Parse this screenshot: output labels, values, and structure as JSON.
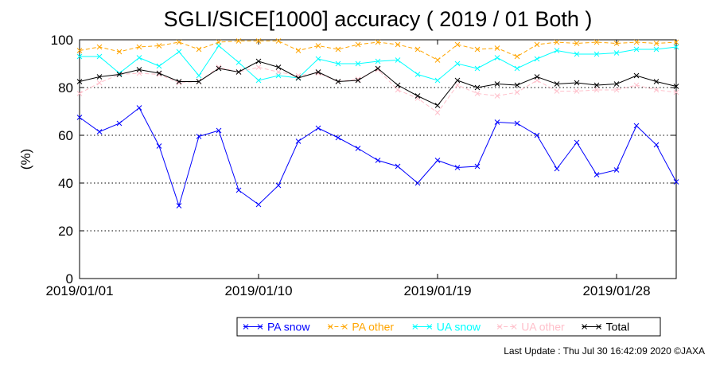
{
  "chart_data": {
    "type": "line",
    "title": "SGLI/SICE[1000] accuracy ( 2019 / 01 Both )",
    "ylabel": "(%)",
    "xlabel": "",
    "ylim": [
      0,
      100
    ],
    "yticks": [
      0,
      20,
      40,
      60,
      80,
      100
    ],
    "grid": "horizontal-dotted",
    "legend_position": "bottom",
    "x": [
      "2019/01/01",
      "2019/01/02",
      "2019/01/03",
      "2019/01/04",
      "2019/01/05",
      "2019/01/06",
      "2019/01/07",
      "2019/01/08",
      "2019/01/09",
      "2019/01/10",
      "2019/01/11",
      "2019/01/12",
      "2019/01/13",
      "2019/01/14",
      "2019/01/15",
      "2019/01/16",
      "2019/01/17",
      "2019/01/18",
      "2019/01/19",
      "2019/01/20",
      "2019/01/21",
      "2019/01/22",
      "2019/01/23",
      "2019/01/24",
      "2019/01/25",
      "2019/01/26",
      "2019/01/27",
      "2019/01/28",
      "2019/01/29",
      "2019/01/30",
      "2019/01/31"
    ],
    "xticks": [
      "2019/01/01",
      "2019/01/10",
      "2019/01/19",
      "2019/01/28"
    ],
    "series": [
      {
        "name": "PA snow",
        "color": "#0000ff",
        "dashed": false,
        "values": [
          67.5,
          61.5,
          65,
          71.5,
          55.5,
          30.5,
          59.5,
          62,
          37,
          31,
          39,
          57.5,
          63,
          59,
          54.5,
          49.5,
          47,
          40,
          49.5,
          46.5,
          47,
          65.5,
          65,
          60,
          46,
          57,
          43.5,
          45.5,
          64,
          56,
          40.5
        ]
      },
      {
        "name": "PA other",
        "color": "#ffa500",
        "dashed": true,
        "values": [
          95.5,
          97,
          95,
          97,
          97.5,
          99,
          96,
          99,
          99.5,
          99.5,
          99.5,
          95.5,
          97.5,
          96,
          98,
          99,
          98,
          96,
          91.5,
          98,
          96,
          96.5,
          93,
          98,
          99,
          98.5,
          99,
          98.5,
          99,
          98.5,
          99
        ]
      },
      {
        "name": "UA snow",
        "color": "#00ffff",
        "dashed": false,
        "values": [
          93,
          93,
          86,
          92.5,
          89,
          95,
          85,
          97.5,
          90.5,
          83,
          85,
          84,
          92,
          90,
          90,
          91,
          91.5,
          85.5,
          83,
          90,
          88,
          92.5,
          88,
          92,
          95.5,
          94,
          94,
          94.5,
          96,
          96,
          97
        ]
      },
      {
        "name": "UA other",
        "color": "#ffc0cb",
        "dashed": true,
        "values": [
          77.5,
          82,
          85.5,
          86,
          85.5,
          82,
          82.5,
          88.5,
          86.5,
          88.5,
          86.5,
          85,
          86,
          82.5,
          83.5,
          87.5,
          79,
          75.5,
          69.5,
          81,
          77.5,
          76.5,
          78,
          83,
          78.5,
          78.5,
          79,
          79,
          81,
          79,
          78
        ]
      },
      {
        "name": "Total",
        "color": "#000000",
        "dashed": false,
        "values": [
          82.5,
          84.5,
          85.5,
          87.5,
          86,
          82.5,
          82.5,
          88,
          86.5,
          91,
          88.5,
          84,
          86.5,
          82.5,
          83,
          88,
          81,
          76.5,
          72.5,
          83,
          80,
          81.5,
          81,
          84.5,
          81.5,
          82,
          81,
          81.5,
          85,
          82.5,
          80.5
        ]
      }
    ]
  },
  "footer": {
    "last_update": "Last Update : Thu Jul 30 16:42:09 2020",
    "copyright": "©JAXA"
  }
}
